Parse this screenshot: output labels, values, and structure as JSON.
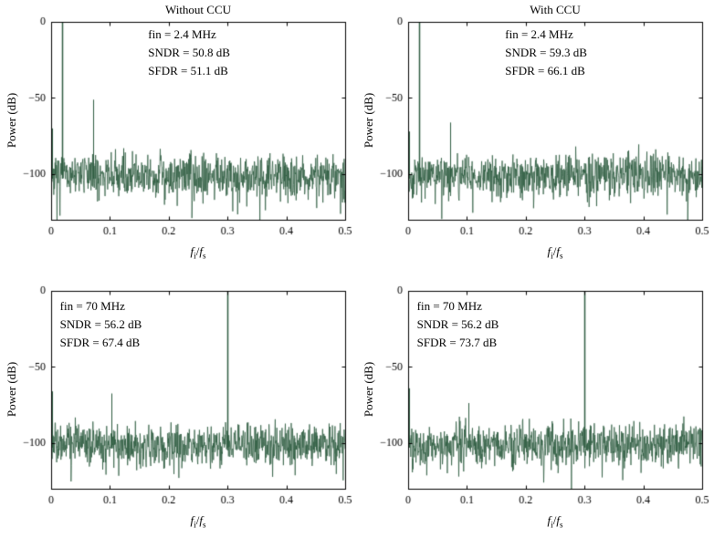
{
  "figure": {
    "background": "#ffffff",
    "axis_color": "#000000"
  },
  "axis_label": {
    "f": "f",
    "sub_i": "i",
    "slash": "/",
    "sub_s": "s"
  },
  "chart_data": [
    {
      "type": "line",
      "title": "Without CCU",
      "annotations": [
        "fin = 2.4 MHz",
        "SNDR = 50.8 dB",
        "SFDR = 51.1 dB"
      ],
      "annotation_pos": {
        "x_frac": 0.33,
        "y_frac": 0.02
      },
      "ylabel": "Power (dB)",
      "xlim": [
        0,
        0.5
      ],
      "ylim": [
        -130,
        0
      ],
      "xticks": [
        "0",
        "0.1",
        "0.2",
        "0.3",
        "0.4",
        "0.5"
      ],
      "xtick_values": [
        0,
        0.1,
        0.2,
        0.3,
        0.4,
        0.5
      ],
      "yticks": [
        "0",
        "−50",
        "−100"
      ],
      "ytick_values": [
        0,
        -50,
        -100
      ],
      "line_color": "#2e5c40",
      "grid": false,
      "noise": {
        "mean": -101,
        "spread": 6.5,
        "points": 900,
        "seed": 7
      },
      "tones": [
        {
          "x": 0.0185,
          "power": 0
        },
        {
          "x": 0.071,
          "power": -51.1
        },
        {
          "x": 0.122,
          "power": -83
        },
        {
          "x": 0.0015,
          "power": -70
        }
      ]
    },
    {
      "type": "line",
      "title": "With CCU",
      "annotations": [
        "fin = 2.4 MHz",
        "SNDR = 59.3 dB",
        "SFDR = 66.1 dB"
      ],
      "annotation_pos": {
        "x_frac": 0.33,
        "y_frac": 0.02
      },
      "ylabel": "Power (dB)",
      "xlim": [
        0,
        0.5
      ],
      "ylim": [
        -130,
        0
      ],
      "xticks": [
        "0",
        "0.1",
        "0.2",
        "0.3",
        "0.4",
        "0.5"
      ],
      "xtick_values": [
        0,
        0.1,
        0.2,
        0.3,
        0.4,
        0.5
      ],
      "yticks": [
        "0",
        "−50",
        "−100"
      ],
      "ytick_values": [
        0,
        -50,
        -100
      ],
      "line_color": "#2e5c40",
      "grid": false,
      "noise": {
        "mean": -101,
        "spread": 6.5,
        "points": 900,
        "seed": 19
      },
      "tones": [
        {
          "x": 0.0185,
          "power": 0
        },
        {
          "x": 0.071,
          "power": -66.1
        },
        {
          "x": 0.0015,
          "power": -72
        }
      ]
    },
    {
      "type": "line",
      "title": "",
      "annotations": [
        "fin = 70 MHz",
        "SNDR = 56.2 dB",
        "SFDR = 67.4 dB"
      ],
      "annotation_pos": {
        "x_frac": 0.03,
        "y_frac": 0.03
      },
      "ylabel": "Power (dB)",
      "xlim": [
        0,
        0.5
      ],
      "ylim": [
        -130,
        0
      ],
      "xticks": [
        "0",
        "0.1",
        "0.2",
        "0.3",
        "0.4",
        "0.5"
      ],
      "xtick_values": [
        0,
        0.1,
        0.2,
        0.3,
        0.4,
        0.5
      ],
      "yticks": [
        "0",
        "−50",
        "−100"
      ],
      "ytick_values": [
        0,
        -50,
        -100
      ],
      "line_color": "#2e5c40",
      "grid": false,
      "noise": {
        "mean": -101,
        "spread": 6.5,
        "points": 900,
        "seed": 33
      },
      "tones": [
        {
          "x": 0.3,
          "power": 0
        },
        {
          "x": 0.103,
          "power": -67.4
        },
        {
          "x": 0.0015,
          "power": -66
        }
      ]
    },
    {
      "type": "line",
      "title": "",
      "annotations": [
        "fin = 70 MHz",
        "SNDR = 56.2 dB",
        "SFDR = 73.7 dB"
      ],
      "annotation_pos": {
        "x_frac": 0.03,
        "y_frac": 0.03
      },
      "ylabel": "Power (dB)",
      "xlim": [
        0,
        0.5
      ],
      "ylim": [
        -130,
        0
      ],
      "xticks": [
        "0",
        "0.1",
        "0.2",
        "0.3",
        "0.4",
        "0.5"
      ],
      "xtick_values": [
        0,
        0.1,
        0.2,
        0.3,
        0.4,
        0.5
      ],
      "yticks": [
        "0",
        "−50",
        "−100"
      ],
      "ytick_values": [
        0,
        -50,
        -100
      ],
      "line_color": "#2e5c40",
      "grid": false,
      "noise": {
        "mean": -101,
        "spread": 6.5,
        "points": 900,
        "seed": 51
      },
      "tones": [
        {
          "x": 0.3,
          "power": 0
        },
        {
          "x": 0.103,
          "power": -73.7
        },
        {
          "x": 0.0015,
          "power": -64
        }
      ]
    }
  ]
}
